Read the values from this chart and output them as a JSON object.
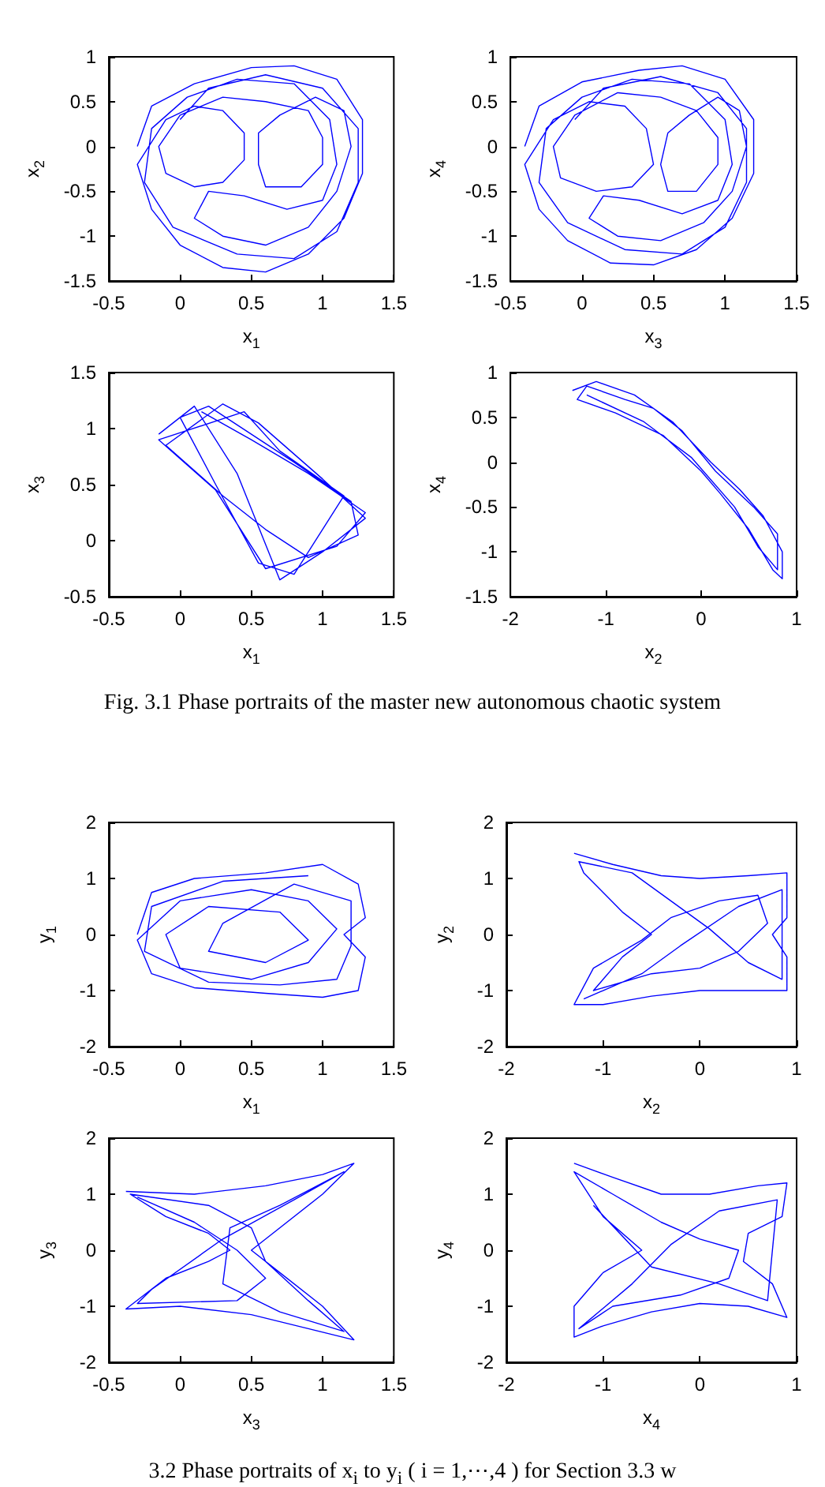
{
  "chart_data": [
    {
      "type": "line",
      "xlabel": "x$_{1}$",
      "ylabel": "x$_{2}$",
      "color": "#0000ff",
      "xlim": [
        -0.5,
        1.5
      ],
      "xticks": [
        -0.5,
        0,
        0.5,
        1,
        1.5
      ],
      "ylim": [
        -1.5,
        1
      ],
      "yticks": [
        -1.5,
        -1,
        -0.5,
        0,
        0.5,
        1
      ],
      "x": [
        -0.3,
        -0.2,
        0.1,
        0.5,
        0.8,
        1.1,
        1.28,
        1.28,
        1.15,
        0.9,
        0.6,
        0.3,
        0,
        -0.2,
        -0.3,
        -0.1,
        0.1,
        0.3,
        0.45,
        0.45,
        0.3,
        0.1,
        -0.1,
        -0.15,
        0,
        0.3,
        0.6,
        0.9,
        1.0,
        1.0,
        0.85,
        0.6,
        0.55,
        0.55,
        0.7,
        0.95,
        1.15,
        1.2,
        1.1,
        0.9,
        0.6,
        0.3,
        0.1,
        0.2,
        0.45,
        0.75,
        1.0,
        1.1,
        1.05,
        0.8,
        0.4,
        0.05,
        -0.2,
        -0.25,
        -0.05,
        0.4,
        0.8,
        1.1,
        1.25,
        1.25,
        1.0,
        0.6,
        0.2,
        0.0
      ],
      "values": [
        0,
        0.45,
        0.7,
        0.88,
        0.9,
        0.75,
        0.3,
        -0.3,
        -0.8,
        -1.2,
        -1.4,
        -1.35,
        -1.1,
        -0.7,
        -0.2,
        0.3,
        0.45,
        0.4,
        0.15,
        -0.15,
        -0.4,
        -0.45,
        -0.3,
        0,
        0.35,
        0.55,
        0.5,
        0.4,
        0.1,
        -0.2,
        -0.45,
        -0.45,
        -0.2,
        0.15,
        0.35,
        0.55,
        0.4,
        0,
        -0.5,
        -0.9,
        -1.1,
        -1.0,
        -0.8,
        -0.5,
        -0.55,
        -0.7,
        -0.6,
        -0.2,
        0.3,
        0.7,
        0.75,
        0.55,
        0.2,
        -0.4,
        -0.9,
        -1.2,
        -1.25,
        -0.95,
        -0.4,
        0.2,
        0.65,
        0.8,
        0.65,
        0.3
      ]
    },
    {
      "type": "line",
      "xlabel": "x$_{3}$",
      "ylabel": "x$_{4}$",
      "color": "#0000ff",
      "xlim": [
        -0.5,
        1.5
      ],
      "xticks": [
        -0.5,
        0,
        0.5,
        1,
        1.5
      ],
      "ylim": [
        -1.5,
        1
      ],
      "yticks": [
        -1.5,
        -1,
        -0.5,
        0,
        0.5,
        1
      ],
      "x": [
        -0.4,
        -0.3,
        0,
        0.4,
        0.7,
        1.0,
        1.2,
        1.2,
        1.05,
        0.8,
        0.5,
        0.2,
        -0.1,
        -0.3,
        -0.4,
        -0.2,
        0.05,
        0.3,
        0.45,
        0.5,
        0.35,
        0.1,
        -0.15,
        -0.2,
        -0.05,
        0.25,
        0.55,
        0.8,
        0.95,
        0.95,
        0.8,
        0.6,
        0.55,
        0.6,
        0.75,
        0.95,
        1.1,
        1.15,
        1.05,
        0.85,
        0.55,
        0.25,
        0.05,
        0.15,
        0.4,
        0.7,
        0.95,
        1.05,
        1.0,
        0.75,
        0.35,
        0,
        -0.25,
        -0.3,
        -0.1,
        0.3,
        0.7,
        1.0,
        1.15,
        1.15,
        0.95,
        0.55,
        0.15,
        -0.05
      ],
      "values": [
        0,
        0.45,
        0.72,
        0.85,
        0.9,
        0.75,
        0.3,
        -0.3,
        -0.8,
        -1.15,
        -1.32,
        -1.3,
        -1.05,
        -0.7,
        -0.2,
        0.3,
        0.5,
        0.45,
        0.2,
        -0.2,
        -0.45,
        -0.5,
        -0.35,
        0,
        0.35,
        0.6,
        0.55,
        0.4,
        0.1,
        -0.2,
        -0.5,
        -0.5,
        -0.2,
        0.15,
        0.35,
        0.55,
        0.4,
        0,
        -0.5,
        -0.85,
        -1.05,
        -1.0,
        -0.8,
        -0.55,
        -0.6,
        -0.75,
        -0.6,
        -0.2,
        0.3,
        0.7,
        0.75,
        0.55,
        0.2,
        -0.4,
        -0.85,
        -1.15,
        -1.2,
        -0.9,
        -0.4,
        0.2,
        0.6,
        0.78,
        0.65,
        0.3
      ]
    },
    {
      "type": "line",
      "xlabel": "x$_{1}$",
      "ylabel": "x$_{3}$",
      "color": "#0000ff",
      "xlim": [
        -0.5,
        1.5
      ],
      "xticks": [
        -0.5,
        0,
        0.5,
        1,
        1.5
      ],
      "ylim": [
        -0.5,
        1.5
      ],
      "yticks": [
        -0.5,
        0,
        0.5,
        1,
        1.5
      ],
      "x": [
        -0.15,
        0.1,
        0.4,
        0.7,
        1.0,
        1.3,
        1.0,
        0.55,
        0.3,
        -0.1,
        0.3,
        0.6,
        0.9,
        1.25,
        1.2,
        0.8,
        0.2,
        0.0,
        0.25,
        0.55,
        0.8,
        1.15,
        0.7,
        0.45,
        -0.15,
        0.25,
        0.6,
        1.1,
        1.3,
        0.9,
        0.5,
        0.15
      ],
      "values": [
        0.95,
        1.2,
        0.6,
        -0.35,
        -0.1,
        0.2,
        0.55,
        1.05,
        1.22,
        0.85,
        0.4,
        0.1,
        -0.15,
        0.05,
        0.35,
        0.7,
        1.2,
        1.1,
        0.5,
        -0.2,
        -0.3,
        0.4,
        0.8,
        1.15,
        0.9,
        0.45,
        -0.25,
        -0.05,
        0.25,
        0.6,
        0.9,
        1.15
      ]
    },
    {
      "type": "line",
      "xlabel": "x$_{2}$",
      "ylabel": "x$_{4}$",
      "color": "#0000ff",
      "xlim": [
        -2,
        1
      ],
      "xticks": [
        -2,
        -1,
        0,
        1
      ],
      "ylim": [
        -1.5,
        1
      ],
      "yticks": [
        -1.5,
        -1,
        -0.5,
        0,
        0.5,
        1
      ],
      "annotations": [
        "Fig. 3.1 Phase portraits of the master new autonomous chaotic system"
      ],
      "x": [
        -1.35,
        -1.1,
        -0.7,
        -0.3,
        0.1,
        0.4,
        0.65,
        0.85,
        0.85,
        0.75,
        0.5,
        0.2,
        0,
        -0.4,
        -0.9,
        -1.3,
        -1.2,
        -0.8,
        -0.5,
        -0.2,
        0.15,
        0.55,
        0.8,
        0.8,
        0.6,
        0.35,
        -0.1,
        -0.6,
        -1.2
      ],
      "values": [
        0.8,
        0.9,
        0.75,
        0.45,
        0.0,
        -0.3,
        -0.6,
        -1.0,
        -1.3,
        -1.2,
        -0.75,
        -0.35,
        -0.1,
        0.3,
        0.55,
        0.7,
        0.85,
        0.7,
        0.6,
        0.35,
        -0.1,
        -0.5,
        -0.8,
        -1.2,
        -0.95,
        -0.5,
        0.05,
        0.45,
        0.75
      ]
    },
    {
      "type": "line",
      "xlabel": "x$_{1}$",
      "ylabel": "y$_{1}$",
      "color": "#0000ff",
      "xlim": [
        -0.5,
        1.5
      ],
      "xticks": [
        -0.5,
        0,
        0.5,
        1,
        1.5
      ],
      "ylim": [
        -2,
        2
      ],
      "yticks": [
        -2,
        -1,
        0,
        1,
        2
      ],
      "x": [
        -0.3,
        -0.2,
        0.1,
        0.6,
        1.0,
        1.25,
        1.3,
        1.15,
        1.3,
        1.25,
        1.0,
        0.6,
        0.1,
        -0.2,
        -0.3,
        0.0,
        0.5,
        0.9,
        1.1,
        0.9,
        0.5,
        0.0,
        -0.1,
        0.2,
        0.7,
        0.9,
        0.6,
        0.2,
        0.3,
        0.8,
        1.2,
        1.2,
        1.1,
        0.7,
        0.2,
        -0.25,
        -0.2,
        0.3,
        0.9
      ],
      "values": [
        0,
        0.75,
        1.0,
        1.1,
        1.25,
        0.9,
        0.3,
        0,
        -0.4,
        -1.0,
        -1.12,
        -1.05,
        -0.95,
        -0.7,
        -0.1,
        0.6,
        0.8,
        0.6,
        0.1,
        -0.5,
        -0.8,
        -0.6,
        0,
        0.5,
        0.4,
        -0.1,
        -0.5,
        -0.3,
        0.2,
        0.9,
        0.6,
        -0.2,
        -0.8,
        -0.9,
        -0.85,
        -0.3,
        0.5,
        0.95,
        1.05
      ]
    },
    {
      "type": "line",
      "xlabel": "x$_{2}$",
      "ylabel": "y$_{2}$",
      "color": "#0000ff",
      "xlim": [
        -2,
        1
      ],
      "xticks": [
        -2,
        -1,
        0,
        1
      ],
      "ylim": [
        -2,
        2
      ],
      "yticks": [
        -2,
        -1,
        0,
        1,
        2
      ],
      "x": [
        -1.3,
        -0.9,
        -0.4,
        0,
        0.5,
        0.9,
        0.9,
        0.75,
        0.9,
        0.9,
        0.4,
        0,
        -0.5,
        -1.0,
        -1.3,
        -1.1,
        -0.6,
        -0.3,
        0.2,
        0.6,
        0.7,
        0.4,
        0,
        -0.5,
        -1.1,
        -0.8,
        -0.5,
        -0.8,
        -1.2,
        -1.25,
        -0.7,
        -0.3,
        0.1,
        0.5,
        0.85,
        0.85,
        0.4,
        -0.2,
        -0.6,
        -1.2
      ],
      "values": [
        1.45,
        1.25,
        1.05,
        1.0,
        1.05,
        1.1,
        0.3,
        0,
        -0.4,
        -1.0,
        -1.0,
        -1.0,
        -1.1,
        -1.25,
        -1.25,
        -0.6,
        -0.1,
        0.3,
        0.6,
        0.7,
        0.2,
        -0.3,
        -0.6,
        -0.7,
        -1.0,
        -0.4,
        0.0,
        0.4,
        1.1,
        1.3,
        1.1,
        0.6,
        0.1,
        -0.5,
        -0.8,
        0.8,
        0.5,
        -0.2,
        -0.7,
        -1.15
      ]
    },
    {
      "type": "line",
      "xlabel": "x$_{3}$",
      "ylabel": "y$_{3}$",
      "color": "#0000ff",
      "xlim": [
        -0.5,
        1.5
      ],
      "xticks": [
        -0.5,
        0,
        0.5,
        1,
        1.5
      ],
      "ylim": [
        -2,
        2
      ],
      "yticks": [
        -2,
        -1,
        0,
        1,
        2
      ],
      "x": [
        -0.38,
        0.1,
        0.6,
        1.0,
        1.22,
        1.0,
        0.65,
        0.5,
        0.7,
        1.0,
        1.22,
        0.9,
        0.5,
        0.0,
        -0.38,
        -0.1,
        0.2,
        0.35,
        0.2,
        -0.1,
        -0.35,
        0.2,
        0.5,
        0.6,
        0.9,
        1.15,
        0.7,
        0.3,
        0.35,
        0.7,
        1.15,
        0.8,
        0.3,
        -0.2,
        -0.3,
        0.4,
        0.6,
        0.4,
        0.1,
        -0.3
      ],
      "values": [
        1.05,
        1.0,
        1.15,
        1.35,
        1.55,
        1.0,
        0.3,
        0,
        -0.4,
        -1.0,
        -1.6,
        -1.4,
        -1.15,
        -1.0,
        -1.05,
        -0.5,
        -0.2,
        0,
        0.3,
        0.6,
        1.0,
        0.8,
        0.4,
        -0.2,
        -0.9,
        -1.45,
        -1.1,
        -0.6,
        0.4,
        0.8,
        1.4,
        0.9,
        0.2,
        -0.7,
        -0.95,
        -0.9,
        -0.5,
        0.0,
        0.5,
        0.95
      ]
    },
    {
      "type": "line",
      "xlabel": "x$_{4}$",
      "ylabel": "y$_{4}$",
      "color": "#0000ff",
      "xlim": [
        -2,
        1
      ],
      "xticks": [
        -2,
        -1,
        0,
        1
      ],
      "ylim": [
        -2,
        2
      ],
      "yticks": [
        -2,
        -1,
        0,
        1,
        2
      ],
      "annotations": [
        "3.2 Phase portraits of x$_{i}$ to y$_{i}$ ( i = 1,⋯,4 ) for Section 3.3 w"
      ],
      "x": [
        -1.3,
        -0.9,
        -0.4,
        0.1,
        0.6,
        0.9,
        0.85,
        0.5,
        0.45,
        0.75,
        0.9,
        0.5,
        0,
        -0.5,
        -1.0,
        -1.3,
        -1.3,
        -1.0,
        -0.6,
        -1.0,
        -1.3,
        -0.9,
        -0.4,
        0,
        0.4,
        0.3,
        -0.2,
        -0.9,
        -1.25,
        -0.7,
        -0.3,
        0.2,
        0.8,
        0.7,
        0.2,
        -0.5,
        -1.1
      ],
      "values": [
        1.55,
        1.3,
        1.0,
        1.0,
        1.15,
        1.2,
        0.6,
        0.3,
        -0.2,
        -0.6,
        -1.2,
        -1.0,
        -0.95,
        -1.1,
        -1.35,
        -1.55,
        -1.0,
        -0.4,
        0,
        0.6,
        1.4,
        1.0,
        0.5,
        0.2,
        0,
        -0.5,
        -0.8,
        -1.0,
        -1.4,
        -0.6,
        0.1,
        0.7,
        0.9,
        -0.9,
        -0.6,
        -0.3,
        0.8
      ]
    }
  ]
}
